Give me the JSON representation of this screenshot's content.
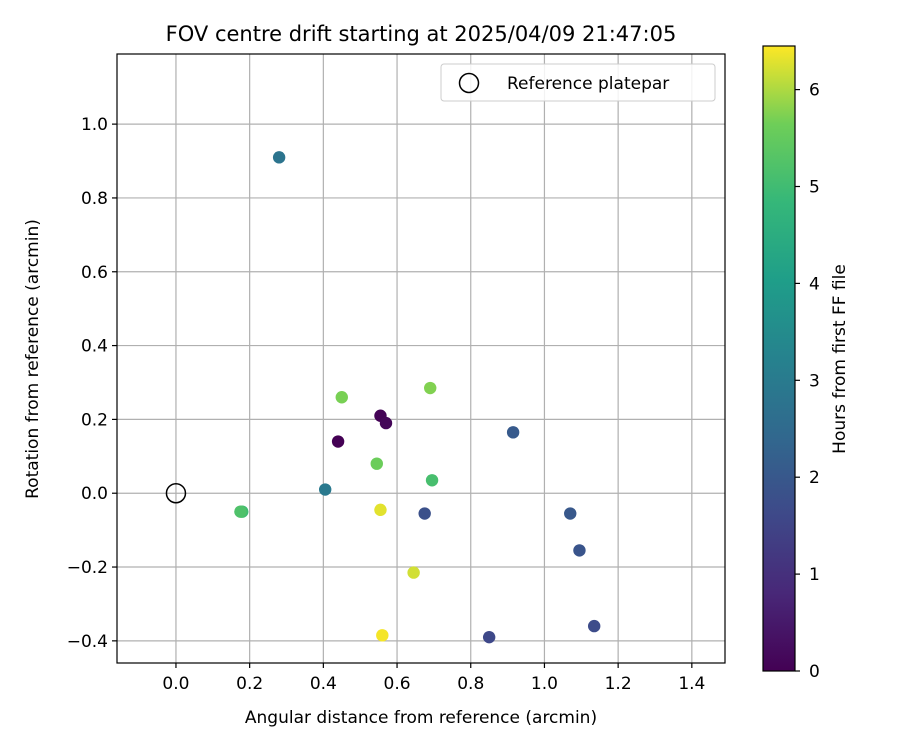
{
  "chart_data": {
    "type": "scatter",
    "title": "FOV centre drift starting at 2025/04/09 21:47:05",
    "xlabel": "Angular distance from reference (arcmin)",
    "ylabel": "Rotation from reference (arcmin)",
    "xlim": [
      -0.16,
      1.49
    ],
    "ylim": [
      -0.46,
      1.19
    ],
    "xticks": [
      0.0,
      0.2,
      0.4,
      0.6,
      0.8,
      1.0,
      1.2,
      1.4
    ],
    "xtick_labels": [
      "0.0",
      "0.2",
      "0.4",
      "0.6",
      "0.8",
      "1.0",
      "1.2",
      "1.4"
    ],
    "yticks": [
      -0.4,
      -0.2,
      0.0,
      0.2,
      0.4,
      0.6,
      0.8,
      1.0
    ],
    "ytick_labels": [
      "−0.4",
      "−0.2",
      "0.0",
      "0.2",
      "0.4",
      "0.6",
      "0.8",
      "1.0"
    ],
    "grid": true,
    "legend": {
      "placement": "top-right",
      "entries": [
        "Reference platepar"
      ]
    },
    "reference_point": {
      "x": 0.0,
      "y": 0.0,
      "marker": "open-circle",
      "label": "Reference platepar"
    },
    "colorbar": {
      "label": "Hours from first FF file",
      "colormap": "viridis",
      "range": [
        0,
        6.45
      ],
      "ticks": [
        0,
        1,
        2,
        3,
        4,
        5,
        6
      ],
      "tick_labels": [
        "0",
        "1",
        "2",
        "3",
        "4",
        "5",
        "6"
      ]
    },
    "points": [
      {
        "x": 0.44,
        "y": 0.14,
        "hours": 0.0
      },
      {
        "x": 0.555,
        "y": 0.21,
        "hours": 0.05
      },
      {
        "x": 0.57,
        "y": 0.19,
        "hours": 0.1
      },
      {
        "x": 0.85,
        "y": -0.39,
        "hours": 1.6
      },
      {
        "x": 1.135,
        "y": -0.36,
        "hours": 1.7
      },
      {
        "x": 0.675,
        "y": -0.055,
        "hours": 1.8
      },
      {
        "x": 1.095,
        "y": -0.155,
        "hours": 1.9
      },
      {
        "x": 1.07,
        "y": -0.055,
        "hours": 2.0
      },
      {
        "x": 0.915,
        "y": 0.165,
        "hours": 2.05
      },
      {
        "x": 0.28,
        "y": 0.91,
        "hours": 2.8
      },
      {
        "x": 0.405,
        "y": 0.01,
        "hours": 2.95
      },
      {
        "x": 0.18,
        "y": -0.05,
        "hours": 5.0
      },
      {
        "x": 0.695,
        "y": 0.035,
        "hours": 5.1
      },
      {
        "x": 0.175,
        "y": -0.05,
        "hours": 5.2
      },
      {
        "x": 0.545,
        "y": 0.08,
        "hours": 5.6
      },
      {
        "x": 0.45,
        "y": 0.26,
        "hours": 5.7
      },
      {
        "x": 0.69,
        "y": 0.285,
        "hours": 5.75
      },
      {
        "x": 0.645,
        "y": -0.215,
        "hours": 6.2
      },
      {
        "x": 0.555,
        "y": -0.045,
        "hours": 6.3
      },
      {
        "x": 0.56,
        "y": -0.385,
        "hours": 6.4
      }
    ]
  }
}
